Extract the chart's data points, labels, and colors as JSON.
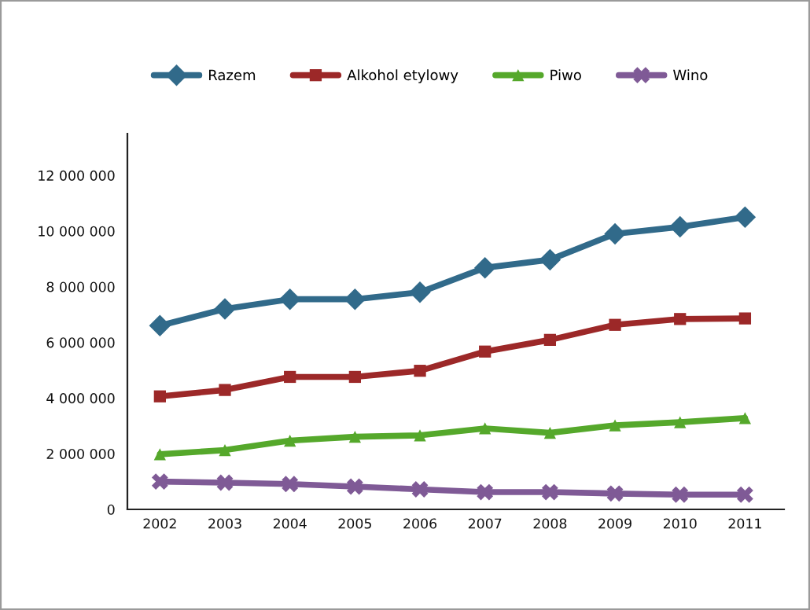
{
  "chart_data": {
    "type": "line",
    "categories": [
      "2002",
      "2003",
      "2004",
      "2005",
      "2006",
      "2007",
      "2008",
      "2009",
      "2010",
      "2011"
    ],
    "series": [
      {
        "name": "Razem",
        "color": "#316a8a",
        "marker": "diamond",
        "values": [
          6600000,
          7200000,
          7550000,
          7550000,
          7800000,
          8680000,
          8970000,
          9900000,
          10150000,
          10500000
        ]
      },
      {
        "name": "Alkohol etylowy",
        "color": "#9c2828",
        "marker": "square",
        "values": [
          4060000,
          4290000,
          4760000,
          4760000,
          4980000,
          5670000,
          6090000,
          6630000,
          6840000,
          6860000
        ]
      },
      {
        "name": "Piwo",
        "color": "#55a82b",
        "marker": "triangle",
        "values": [
          1980000,
          2130000,
          2470000,
          2610000,
          2660000,
          2910000,
          2750000,
          3020000,
          3130000,
          3280000
        ]
      },
      {
        "name": "Wino",
        "color": "#7f5a96",
        "marker": "cross",
        "values": [
          1000000,
          960000,
          910000,
          820000,
          720000,
          620000,
          620000,
          570000,
          530000,
          530000
        ]
      }
    ],
    "ylim": [
      0,
      13500000
    ],
    "yticks": [
      0,
      {
        "value": 2000000,
        "label": "2 000 000"
      },
      {
        "value": 4000000,
        "label": "4 000 000"
      },
      {
        "value": 6000000,
        "label": "6 000 000"
      },
      {
        "value": 8000000,
        "label": "8 000 000"
      },
      {
        "value": 10000000,
        "label": "10 000 000"
      },
      {
        "value": 12000000,
        "label": "12 000 000"
      }
    ],
    "line_style": "solid",
    "legend": "top"
  }
}
